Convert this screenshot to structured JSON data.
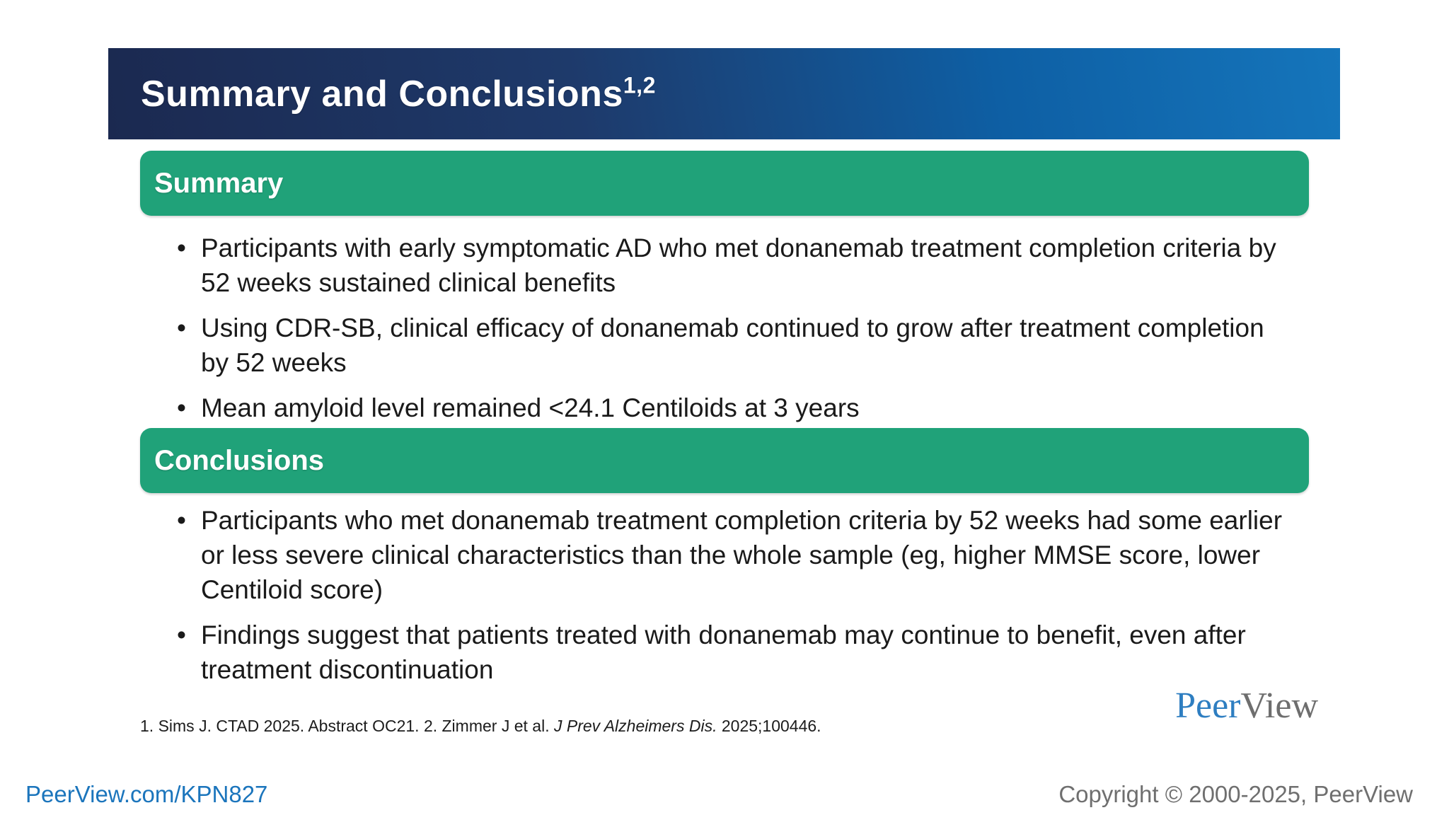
{
  "slide": {
    "title": "Summary and Conclusions",
    "title_superscript": "1,2",
    "sections": [
      {
        "header": "Summary",
        "bullets": [
          "Participants with early symptomatic AD who met donanemab treatment completion criteria by 52 weeks sustained clinical benefits",
          "Using CDR-SB, clinical efficacy of donanemab continued to grow after treatment completion by 52 weeks",
          "Mean amyloid level remained <24.1 Centiloids at 3 years"
        ]
      },
      {
        "header": "Conclusions",
        "bullets": [
          "Participants who met donanemab treatment completion criteria by 52 weeks had some earlier or less severe clinical characteristics than the whole sample (eg, higher MMSE score, lower Centiloid score)",
          "Findings suggest that patients treated with donanemab may continue to benefit, even after treatment discontinuation"
        ]
      }
    ],
    "citation": {
      "prefix": "1. Sims J. CTAD 2025. Abstract OC21. 2. Zimmer J et al. ",
      "italic": "J Prev Alzheimers Dis.",
      "suffix": " 2025;100446."
    },
    "logo": {
      "primary": "Peer",
      "secondary": "View"
    }
  },
  "footer": {
    "link": "PeerView.com/KPN827",
    "copyright": "Copyright © 2000-2025, PeerView"
  },
  "colors": {
    "header_gradient_start": "#1b2950",
    "header_gradient_end": "#1575bb",
    "section_bar_green": "#20a279",
    "body_text": "#1a1a1a",
    "logo_blue": "#2e7ec1",
    "logo_gray": "#6e6e6e",
    "footer_link_blue": "#1b75bc",
    "footer_gray": "#6f6f6f"
  }
}
